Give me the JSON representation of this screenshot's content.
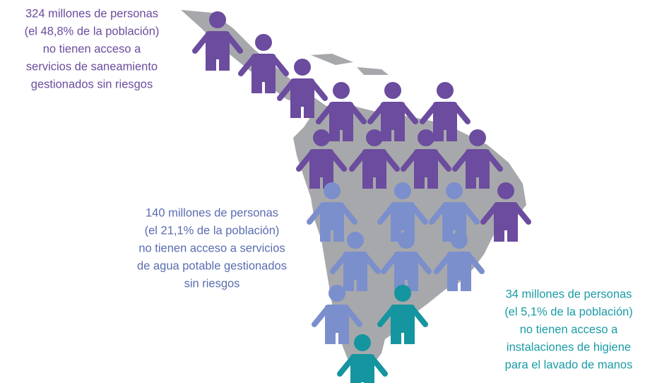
{
  "blocks": [
    {
      "lines": [
        "324 millones de personas",
        "(el 48,8% de la población)",
        "no tienen acceso a",
        "servicios de saneamiento",
        "gestionados sin riesgos"
      ]
    },
    {
      "lines": [
        "140 millones de personas",
        "(el 21,1% de la población)",
        "no tienen acceso a servicios",
        "de agua potable gestionados",
        "sin riesgos"
      ]
    },
    {
      "lines": [
        "34 millones de personas",
        "(el 5,1% de la población)",
        "no tienen acceso a",
        "instalaciones de higiene",
        "para el lavado de manos"
      ]
    }
  ]
}
